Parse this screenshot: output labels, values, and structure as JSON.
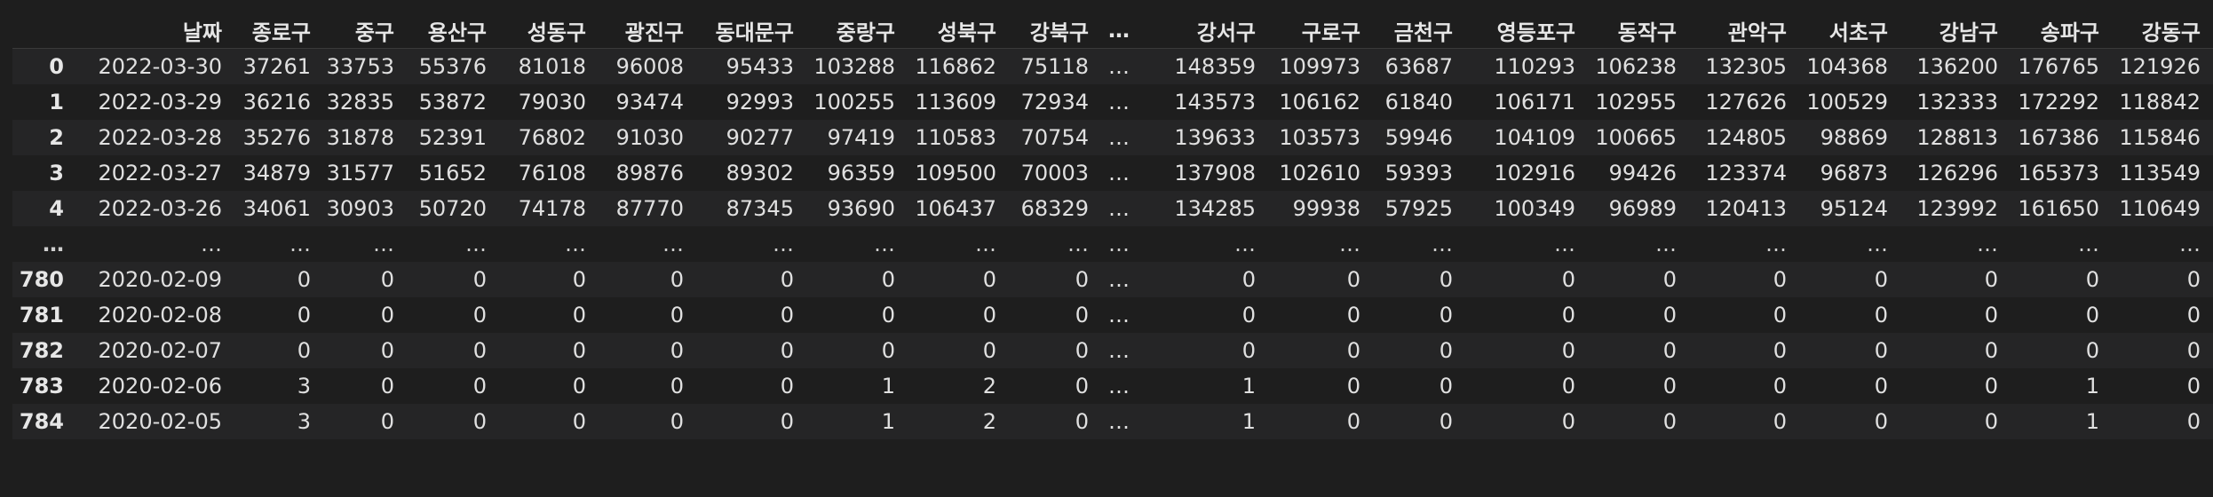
{
  "columns": [
    "날짜",
    "종로구",
    "중구",
    "용산구",
    "성동구",
    "광진구",
    "동대문구",
    "중랑구",
    "성북구",
    "강북구",
    "…",
    "강서구",
    "구로구",
    "금천구",
    "영등포구",
    "동작구",
    "관악구",
    "서초구",
    "강남구",
    "송파구",
    "강동구"
  ],
  "rows": [
    {
      "index": "0",
      "values": [
        "2022-03-30",
        "37261",
        "33753",
        "55376",
        "81018",
        "96008",
        "95433",
        "103288",
        "116862",
        "75118",
        "…",
        "148359",
        "109973",
        "63687",
        "110293",
        "106238",
        "132305",
        "104368",
        "136200",
        "176765",
        "121926"
      ]
    },
    {
      "index": "1",
      "values": [
        "2022-03-29",
        "36216",
        "32835",
        "53872",
        "79030",
        "93474",
        "92993",
        "100255",
        "113609",
        "72934",
        "…",
        "143573",
        "106162",
        "61840",
        "106171",
        "102955",
        "127626",
        "100529",
        "132333",
        "172292",
        "118842"
      ]
    },
    {
      "index": "2",
      "values": [
        "2022-03-28",
        "35276",
        "31878",
        "52391",
        "76802",
        "91030",
        "90277",
        "97419",
        "110583",
        "70754",
        "…",
        "139633",
        "103573",
        "59946",
        "104109",
        "100665",
        "124805",
        "98869",
        "128813",
        "167386",
        "115846"
      ]
    },
    {
      "index": "3",
      "values": [
        "2022-03-27",
        "34879",
        "31577",
        "51652",
        "76108",
        "89876",
        "89302",
        "96359",
        "109500",
        "70003",
        "…",
        "137908",
        "102610",
        "59393",
        "102916",
        "99426",
        "123374",
        "96873",
        "126296",
        "165373",
        "113549"
      ]
    },
    {
      "index": "4",
      "values": [
        "2022-03-26",
        "34061",
        "30903",
        "50720",
        "74178",
        "87770",
        "87345",
        "93690",
        "106437",
        "68329",
        "…",
        "134285",
        "99938",
        "57925",
        "100349",
        "96989",
        "120413",
        "95124",
        "123992",
        "161650",
        "110649"
      ]
    },
    {
      "index": "…",
      "values": [
        "…",
        "…",
        "…",
        "…",
        "…",
        "…",
        "…",
        "…",
        "…",
        "…",
        "…",
        "…",
        "…",
        "…",
        "…",
        "…",
        "…",
        "…",
        "…",
        "…",
        "…"
      ]
    },
    {
      "index": "780",
      "values": [
        "2020-02-09",
        "0",
        "0",
        "0",
        "0",
        "0",
        "0",
        "0",
        "0",
        "0",
        "…",
        "0",
        "0",
        "0",
        "0",
        "0",
        "0",
        "0",
        "0",
        "0",
        "0"
      ]
    },
    {
      "index": "781",
      "values": [
        "2020-02-08",
        "0",
        "0",
        "0",
        "0",
        "0",
        "0",
        "0",
        "0",
        "0",
        "…",
        "0",
        "0",
        "0",
        "0",
        "0",
        "0",
        "0",
        "0",
        "0",
        "0"
      ]
    },
    {
      "index": "782",
      "values": [
        "2020-02-07",
        "0",
        "0",
        "0",
        "0",
        "0",
        "0",
        "0",
        "0",
        "0",
        "…",
        "0",
        "0",
        "0",
        "0",
        "0",
        "0",
        "0",
        "0",
        "0",
        "0"
      ]
    },
    {
      "index": "783",
      "values": [
        "2020-02-06",
        "3",
        "0",
        "0",
        "0",
        "0",
        "0",
        "1",
        "2",
        "0",
        "…",
        "1",
        "0",
        "0",
        "0",
        "0",
        "0",
        "0",
        "0",
        "1",
        "0"
      ]
    },
    {
      "index": "784",
      "values": [
        "2020-02-05",
        "3",
        "0",
        "0",
        "0",
        "0",
        "0",
        "1",
        "2",
        "0",
        "…",
        "1",
        "0",
        "0",
        "0",
        "0",
        "0",
        "0",
        "0",
        "1",
        "0"
      ]
    }
  ],
  "colors": {
    "background": "#1e1e1e",
    "row_alt": "#252526",
    "text": "#e0e0e0",
    "header_border": "#3a3a3a"
  }
}
